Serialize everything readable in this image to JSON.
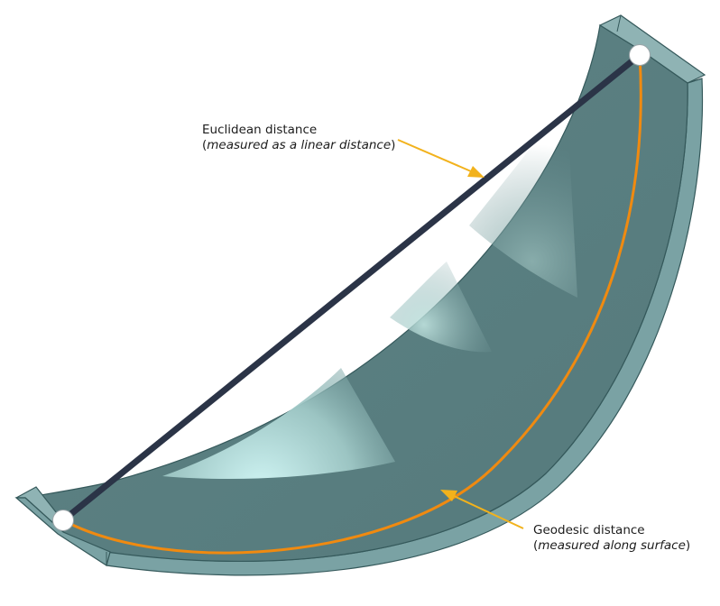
{
  "euclidean": {
    "title": "Euclidean distance",
    "paren_open": "(",
    "note": "measured as a linear distance",
    "paren_close": ")"
  },
  "geodesic": {
    "title": "Geodesic distance",
    "paren_open": "(",
    "note": "measured along surface",
    "paren_close": ")"
  },
  "colors": {
    "chord": "#2b3447",
    "geodesic_path": "#f08a10",
    "leader_arrow": "#f2b21c",
    "surface_dark": "#4f7476",
    "surface_light": "#d6fbfa",
    "rim": "#7fa8aa",
    "endpoint": "#ffffff"
  }
}
